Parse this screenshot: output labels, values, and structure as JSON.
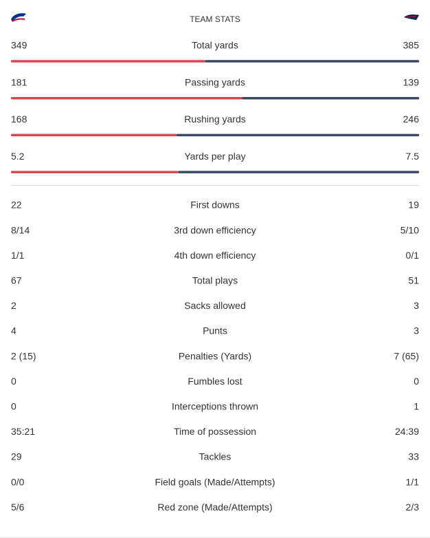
{
  "header": {
    "title": "TEAM STATS"
  },
  "bar_stats": [
    {
      "label": "Total yards",
      "home": 349,
      "away": 385
    },
    {
      "label": "Passing yards",
      "home": 181,
      "away": 139
    },
    {
      "label": "Rushing yards",
      "home": 168,
      "away": 246
    },
    {
      "label": "Yards per play",
      "home": 5.2,
      "away": 7.5
    }
  ],
  "rows": [
    [
      "22",
      "First downs",
      "19"
    ],
    [
      "8/14",
      "3rd down efficiency",
      "5/10"
    ],
    [
      "1/1",
      "4th down efficiency",
      "0/1"
    ],
    [
      "67",
      "Total plays",
      "51"
    ],
    [
      "2",
      "Sacks allowed",
      "3"
    ],
    [
      "4",
      "Punts",
      "3"
    ],
    [
      "2 (15)",
      "Penalties (Yards)",
      "7 (65)"
    ],
    [
      "0",
      "Fumbles lost",
      "0"
    ],
    [
      "0",
      "Interceptions thrown",
      "1"
    ],
    [
      "35:21",
      "Time of possession",
      "24:39"
    ],
    [
      "29",
      "Tackles",
      "33"
    ],
    [
      "0/0",
      "Field goals (Made/Attempts)",
      "1/1"
    ],
    [
      "5/6",
      "Red zone (Made/Attempts)",
      "2/3"
    ]
  ]
}
